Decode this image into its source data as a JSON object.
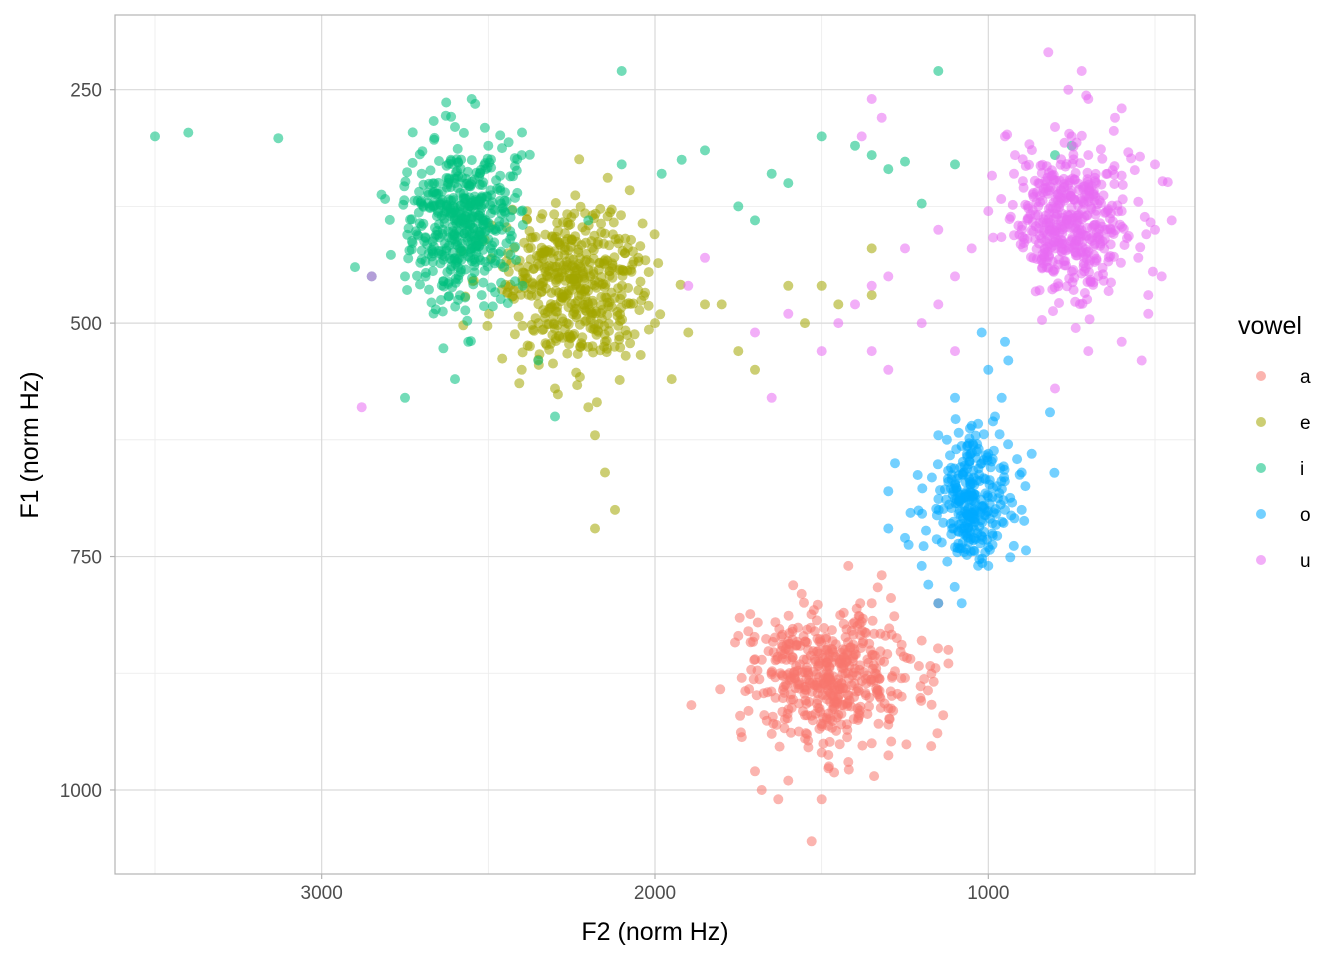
{
  "chart_data": {
    "type": "scatter",
    "title": "",
    "xlabel": "F2 (norm Hz)",
    "ylabel": "F1 (norm Hz)",
    "x_reversed": true,
    "y_reversed": true,
    "xlim": [
      3620,
      380
    ],
    "ylim": [
      170,
      1090
    ],
    "x_ticks": [
      3000,
      2000,
      1000
    ],
    "y_ticks": [
      250,
      500,
      750,
      1000
    ],
    "grid": true,
    "legend": {
      "title": "vowel",
      "placement": "right"
    },
    "point_alpha": 0.55,
    "series": [
      {
        "name": "a",
        "color": "#F8766D",
        "n_points": 500,
        "center": [
          1480,
          880
        ],
        "spread": [
          170,
          50
        ],
        "points": [
          [
            1480,
            880
          ],
          [
            1520,
            860
          ],
          [
            1450,
            900
          ],
          [
            1400,
            870
          ],
          [
            1550,
            920
          ],
          [
            1600,
            850
          ],
          [
            1380,
            820
          ],
          [
            1700,
            860
          ],
          [
            1250,
            880
          ],
          [
            1300,
            930
          ],
          [
            1500,
            960
          ],
          [
            1650,
            940
          ],
          [
            1350,
            800
          ],
          [
            1560,
            790
          ],
          [
            1420,
            760
          ],
          [
            1720,
            830
          ],
          [
            1200,
            840
          ],
          [
            1260,
            900
          ],
          [
            1680,
            1000
          ],
          [
            1630,
            1010
          ],
          [
            1500,
            1010
          ],
          [
            1420,
            970
          ],
          [
            1530,
            1055
          ],
          [
            1350,
            950
          ],
          [
            1750,
            835
          ],
          [
            1740,
            880
          ],
          [
            1320,
            770
          ],
          [
            1150,
            800
          ],
          [
            1120,
            850
          ],
          [
            1600,
            990
          ],
          [
            1700,
            980
          ]
        ]
      },
      {
        "name": "e",
        "color": "#A3A500",
        "n_points": 500,
        "center": [
          2250,
          460
        ],
        "spread": [
          150,
          55
        ],
        "points": [
          [
            2250,
            460
          ],
          [
            2200,
            480
          ],
          [
            2300,
            440
          ],
          [
            2350,
            500
          ],
          [
            2150,
            520
          ],
          [
            2100,
            470
          ],
          [
            2050,
            430
          ],
          [
            2000,
            500
          ],
          [
            1950,
            560
          ],
          [
            1900,
            510
          ],
          [
            1850,
            480
          ],
          [
            1750,
            530
          ],
          [
            1700,
            550
          ],
          [
            1600,
            460
          ],
          [
            1550,
            500
          ],
          [
            1450,
            480
          ],
          [
            1350,
            420
          ],
          [
            2200,
            590
          ],
          [
            2180,
            620
          ],
          [
            2150,
            660
          ],
          [
            2120,
            700
          ],
          [
            2180,
            720
          ],
          [
            1800,
            480
          ],
          [
            2400,
            550
          ],
          [
            2250,
            410
          ],
          [
            2300,
            570
          ],
          [
            1350,
            470
          ],
          [
            1500,
            460
          ]
        ]
      },
      {
        "name": "i",
        "color": "#00BF7D",
        "n_points": 500,
        "center": [
          2580,
          390
        ],
        "spread": [
          110,
          55
        ],
        "points": [
          [
            2580,
            390
          ],
          [
            2600,
            350
          ],
          [
            2550,
            420
          ],
          [
            2650,
            380
          ],
          [
            2500,
            410
          ],
          [
            2450,
            360
          ],
          [
            2700,
            340
          ],
          [
            2750,
            450
          ],
          [
            2520,
            470
          ],
          [
            2560,
            520
          ],
          [
            2600,
            560
          ],
          [
            2400,
            320
          ],
          [
            2350,
            540
          ],
          [
            2300,
            600
          ],
          [
            2100,
            230
          ],
          [
            2550,
            260
          ],
          [
            2600,
            290
          ],
          [
            2500,
            310
          ],
          [
            3500,
            300
          ],
          [
            3400,
            296
          ],
          [
            3130,
            302
          ],
          [
            2900,
            440
          ],
          [
            2850,
            450
          ],
          [
            2750,
            580
          ],
          [
            2200,
            390
          ],
          [
            2100,
            330
          ],
          [
            1980,
            340
          ],
          [
            1920,
            325
          ],
          [
            1850,
            315
          ],
          [
            1750,
            375
          ],
          [
            1700,
            390
          ],
          [
            1650,
            340
          ],
          [
            1600,
            350
          ],
          [
            1500,
            300
          ],
          [
            1400,
            310
          ],
          [
            1350,
            320
          ],
          [
            1300,
            335
          ],
          [
            1250,
            327
          ],
          [
            1200,
            372
          ],
          [
            1100,
            330
          ],
          [
            1150,
            230
          ],
          [
            800,
            320
          ],
          [
            750,
            310
          ]
        ]
      },
      {
        "name": "o",
        "color": "#00A9FF",
        "n_points": 300,
        "center": [
          1050,
          690
        ],
        "spread": [
          80,
          45
        ],
        "points": [
          [
            1050,
            690
          ],
          [
            1020,
            650
          ],
          [
            1080,
            720
          ],
          [
            1000,
            740
          ],
          [
            1120,
            670
          ],
          [
            950,
            700
          ],
          [
            1150,
            620
          ],
          [
            1100,
            580
          ],
          [
            980,
            600
          ],
          [
            1000,
            550
          ],
          [
            1020,
            510
          ],
          [
            1200,
            760
          ],
          [
            1250,
            730
          ],
          [
            1300,
            720
          ],
          [
            1300,
            680
          ],
          [
            1280,
            650
          ],
          [
            1050,
            610
          ],
          [
            1000,
            640
          ],
          [
            1100,
            740
          ],
          [
            900,
            700
          ],
          [
            900,
            660
          ],
          [
            870,
            640
          ],
          [
            960,
            580
          ],
          [
            1000,
            760
          ],
          [
            1080,
            800
          ],
          [
            1150,
            800
          ],
          [
            1180,
            780
          ],
          [
            940,
            540
          ],
          [
            950,
            520
          ]
        ]
      },
      {
        "name": "u",
        "color": "#E76BF3",
        "n_points": 500,
        "center": [
          750,
          390
        ],
        "spread": [
          120,
          55
        ],
        "points": [
          [
            750,
            390
          ],
          [
            700,
            370
          ],
          [
            800,
            420
          ],
          [
            650,
            400
          ],
          [
            850,
            350
          ],
          [
            900,
            400
          ],
          [
            600,
            380
          ],
          [
            550,
            430
          ],
          [
            700,
            320
          ],
          [
            750,
            300
          ],
          [
            800,
            290
          ],
          [
            1000,
            380
          ],
          [
            1050,
            420
          ],
          [
            1100,
            450
          ],
          [
            1150,
            480
          ],
          [
            1250,
            420
          ],
          [
            1300,
            450
          ],
          [
            1350,
            460
          ],
          [
            1400,
            480
          ],
          [
            1450,
            500
          ],
          [
            1500,
            530
          ],
          [
            1600,
            490
          ],
          [
            1700,
            510
          ],
          [
            1650,
            580
          ],
          [
            1850,
            430
          ],
          [
            1900,
            460
          ],
          [
            2850,
            450
          ],
          [
            2880,
            590
          ],
          [
            1300,
            550
          ],
          [
            1350,
            530
          ],
          [
            1320,
            280
          ],
          [
            1350,
            260
          ],
          [
            1380,
            300
          ],
          [
            700,
            260
          ],
          [
            760,
            250
          ],
          [
            720,
            230
          ],
          [
            820,
            210
          ],
          [
            620,
            280
          ],
          [
            600,
            270
          ],
          [
            500,
            330
          ],
          [
            550,
            370
          ],
          [
            500,
            400
          ],
          [
            450,
            390
          ],
          [
            480,
            450
          ],
          [
            520,
            470
          ],
          [
            540,
            540
          ],
          [
            520,
            490
          ],
          [
            600,
            520
          ],
          [
            700,
            530
          ],
          [
            800,
            570
          ],
          [
            1100,
            530
          ],
          [
            1200,
            500
          ],
          [
            1150,
            400
          ],
          [
            950,
            300
          ],
          [
            920,
            320
          ]
        ]
      }
    ]
  }
}
